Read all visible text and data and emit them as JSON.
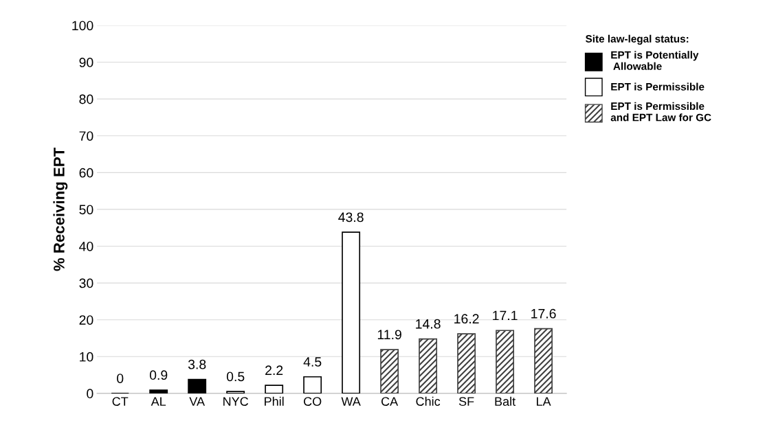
{
  "chart_data": {
    "type": "bar",
    "ylabel": "% Receiving EPT",
    "categories": [
      "CT",
      "AL",
      "VA",
      "NYC",
      "Phil",
      "CO",
      "WA",
      "CA",
      "Chic",
      "SF",
      "Balt",
      "LA"
    ],
    "series": [
      {
        "name": "EPT is Potentially\n Allowable",
        "color": "#000000",
        "values": [
          0,
          0.9,
          3.8,
          null,
          null,
          null,
          null,
          null,
          null,
          null,
          null,
          null
        ]
      },
      {
        "name": "EPT is Permissible",
        "color": "#ffffff",
        "values": [
          null,
          null,
          null,
          0.5,
          2.2,
          4.5,
          43.8,
          null,
          null,
          null,
          null,
          null
        ]
      },
      {
        "name": "EPT is Permissible\nand EPT Law for GC",
        "color": "#404040",
        "values": [
          null,
          null,
          null,
          null,
          null,
          null,
          null,
          11.9,
          14.8,
          16.2,
          17.1,
          17.6
        ]
      }
    ],
    "legend_title": "Site law-legal status:",
    "legend": "right",
    "ylim": [
      0,
      100
    ],
    "yticks": [
      0,
      10,
      20,
      30,
      40,
      50,
      60,
      70,
      80,
      90,
      100
    ],
    "grid": "y",
    "data_labels": true
  }
}
